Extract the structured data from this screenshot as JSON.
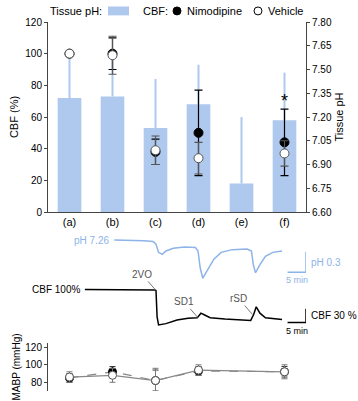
{
  "chart_data": [
    {
      "type": "bar",
      "categories": [
        "(a)",
        "(b)",
        "(c)",
        "(d)",
        "(e)",
        "(f)"
      ],
      "y_label": "CBF (%)",
      "y2_label": "Tissue pH",
      "ylim": [
        0,
        120
      ],
      "yticks": [
        0,
        20,
        40,
        60,
        80,
        100,
        120
      ],
      "y2lim": [
        6.6,
        7.8
      ],
      "y2ticks": [
        {
          "value": 6.6,
          "label": "6.60"
        },
        6.75,
        {
          "value": 6.9,
          "label": "6.90"
        },
        7.05,
        {
          "value": 7.2,
          "label": "7.20"
        },
        7.35,
        {
          "value": 7.5,
          "label": "7.50"
        },
        7.65,
        {
          "value": 7.8,
          "label": "7.80"
        }
      ],
      "series": [
        {
          "name": "Tissue pH:",
          "type": "bar",
          "axis": "y2",
          "color": "#aec8ee",
          "values": [
            7.32,
            7.33,
            7.13,
            7.28,
            6.78,
            7.18
          ],
          "error": [
            0.31,
            0.3,
            0.31,
            0.25,
            0.42,
            0.3
          ]
        },
        {
          "name": "Nimodipine",
          "legend_title": "CBF:",
          "type": "scatter",
          "axis": "y",
          "color": "#000000",
          "marker": "filled",
          "values": [
            100,
            100,
            38,
            50,
            null,
            44
          ],
          "error": [
            0,
            10,
            8,
            27,
            null,
            21
          ]
        },
        {
          "name": "Vehicle",
          "type": "scatter",
          "axis": "y",
          "color": "#ffffff",
          "marker": "open",
          "values": [
            100,
            99,
            39,
            34,
            null,
            37
          ],
          "error": [
            0,
            12,
            9,
            10,
            null,
            8
          ]
        }
      ],
      "annotations": [
        {
          "text": "*",
          "category": "(f)",
          "series": "Nimodipine"
        }
      ]
    },
    {
      "type": "line",
      "tick_labels": false,
      "xlim": [
        -10,
        60
      ],
      "ylim": [
        6.6,
        7.35
      ],
      "y2lim": [
        0,
        110
      ],
      "series": [
        {
          "label": "pH 7.26",
          "axis": "y",
          "color": "#8db3e8",
          "x": [
            8,
            12,
            16,
            18.5,
            19.3,
            20,
            21,
            22,
            24,
            27,
            30,
            30.7,
            31.3,
            32,
            33,
            35,
            37,
            40,
            44,
            45.2,
            45.7,
            46.3,
            47.5,
            49,
            51,
            53.5
          ],
          "values": [
            7.26,
            7.26,
            7.25,
            7.24,
            7.2,
            7.08,
            7.05,
            7.1,
            7.14,
            7.16,
            7.15,
            7.1,
            6.85,
            6.7,
            6.8,
            6.98,
            7.08,
            7.12,
            7.13,
            7.1,
            6.9,
            6.78,
            6.9,
            7.02,
            7.08,
            7.1
          ]
        },
        {
          "label": "CBF 100%",
          "axis": "y2",
          "color": "#000000",
          "x": [
            0,
            5,
            10,
            15,
            19,
            19.3,
            19.6,
            20,
            22,
            25,
            28,
            30.5,
            31.5,
            32.5,
            34,
            38,
            42,
            45,
            45.8,
            46.5,
            47.5,
            49,
            53.5
          ],
          "values": [
            100,
            100,
            99,
            100,
            99,
            98,
            40,
            22,
            25,
            33,
            37,
            38,
            48,
            44,
            38,
            35,
            33,
            32,
            45,
            62,
            48,
            38,
            34
          ]
        }
      ],
      "events": [
        {
          "text": "2VO",
          "x": 19.3,
          "axis": "y2"
        },
        {
          "text": "SD1",
          "x": 30.7,
          "axis": "y2"
        },
        {
          "text": "rSD",
          "x": 45.5,
          "axis": "y2"
        }
      ],
      "scale_bars": [
        {
          "axis": "y",
          "value": 0.3,
          "label": "pH 0.3",
          "x_value": 5,
          "x_label": "5 min",
          "color": "#8db3e8"
        },
        {
          "axis": "y2",
          "value": 30,
          "label": "CBF 30 %",
          "x_value": 5,
          "x_label": "5 min",
          "color": "#000000"
        }
      ]
    },
    {
      "type": "line",
      "categories": [
        "(a)",
        "(b)",
        "(c)",
        "(d)",
        "(e)",
        "(f)"
      ],
      "y_label": "MABP (mmHg)",
      "ylim": [
        70,
        125
      ],
      "yticks": [
        80,
        100,
        120
      ],
      "tick_labels": "y",
      "series": [
        {
          "name": "Nimodipine",
          "color": "#000000",
          "marker": "filled",
          "line_style": "dashed",
          "values": [
            85,
            92,
            82,
            93,
            null,
            92
          ],
          "error": [
            5,
            6,
            12,
            5,
            null,
            6
          ]
        },
        {
          "name": "Vehicle",
          "color": "#ffffff",
          "marker": "open",
          "line_style": "solid",
          "values": [
            86,
            88,
            82,
            94,
            null,
            92
          ],
          "error": [
            6,
            8,
            14,
            6,
            null,
            8
          ]
        }
      ]
    }
  ]
}
